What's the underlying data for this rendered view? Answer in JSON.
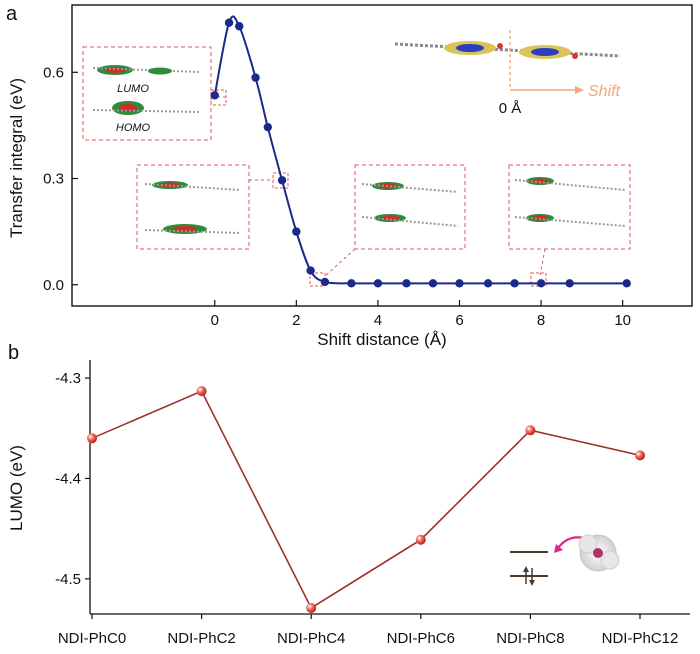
{
  "chart_data": [
    {
      "panel": "a",
      "type": "line",
      "xlabel": "Shift distance (Å)",
      "ylabel": "Transfer integral (eV)",
      "xlim": [
        -3.5,
        11.7
      ],
      "ylim": [
        -0.06,
        0.79
      ],
      "xticks": [
        "0",
        "2",
        "4",
        "6",
        "8",
        "10"
      ],
      "yticks": [
        "0.0",
        "0.3",
        "0.6"
      ],
      "series": [
        {
          "name": "Transfer integral",
          "color": "#1a2a8a",
          "x": [
            0,
            0.35,
            0.6,
            1.0,
            1.3,
            1.65,
            2.0,
            2.35,
            2.7,
            3.35,
            4.0,
            4.7,
            5.35,
            6.0,
            6.7,
            7.35,
            8.0,
            8.7,
            10.1
          ],
          "y": [
            0.535,
            0.74,
            0.73,
            0.585,
            0.445,
            0.295,
            0.15,
            0.04,
            0.008,
            0.004,
            0.004,
            0.004,
            0.004,
            0.004,
            0.004,
            0.004,
            0.004,
            0.004,
            0.004
          ]
        }
      ],
      "annotations": {
        "zero_label": "0 Å",
        "shift_label": "Shift",
        "lumo_label": "LUMO",
        "homo_label": "HOMO"
      }
    },
    {
      "panel": "b",
      "type": "line",
      "xlabel": "",
      "ylabel": "LUMO (eV)",
      "ylim": [
        -4.535,
        -4.282
      ],
      "yticks": [
        "-4.3",
        "-4.4",
        "-4.5"
      ],
      "categories": [
        "NDI-PhC0",
        "NDI-PhC2",
        "NDI-PhC4",
        "NDI-PhC6",
        "NDI-PhC8",
        "NDI-PhC12"
      ],
      "series": [
        {
          "name": "LUMO",
          "color": "#a0302a",
          "values": [
            -4.36,
            -4.313,
            -4.529,
            -4.461,
            -4.352,
            -4.377
          ]
        }
      ]
    }
  ]
}
